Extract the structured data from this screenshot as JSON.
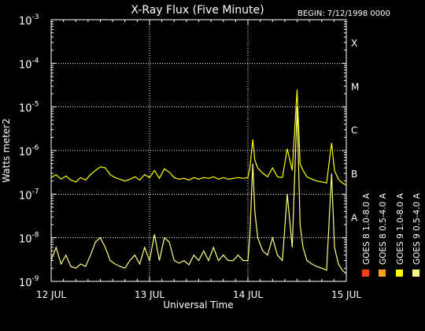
{
  "chart_data": {
    "type": "line",
    "title": "X-Ray Flux (Five Minute)",
    "begin_label": "BEGIN: 7/12/1998 0000",
    "xlabel": "Universal Time",
    "ylabel": "Watts meter2",
    "y_scale": "log",
    "ylim": [
      1e-09,
      0.001
    ],
    "y_ticks": [
      {
        "mant": "10",
        "exp": "-9",
        "value": 1e-09
      },
      {
        "mant": "10",
        "exp": "-8",
        "value": 1e-08
      },
      {
        "mant": "10",
        "exp": "-7",
        "value": 1e-07
      },
      {
        "mant": "10",
        "exp": "-6",
        "value": 1e-06
      },
      {
        "mant": "10",
        "exp": "-5",
        "value": 1e-05
      },
      {
        "mant": "10",
        "exp": "-4",
        "value": 0.0001
      },
      {
        "mant": "10",
        "exp": "-3",
        "value": 0.001
      }
    ],
    "x_ticks": [
      "12 JUL",
      "13 JUL",
      "14 JUL",
      "15 JUL"
    ],
    "grid": true,
    "flare_classes": [
      {
        "label": "A",
        "value": 3e-08
      },
      {
        "label": "B",
        "value": 3e-07
      },
      {
        "label": "C",
        "value": 3e-06
      },
      {
        "label": "M",
        "value": 3e-05
      },
      {
        "label": "X",
        "value": 0.0003
      }
    ],
    "legend": [
      {
        "name": "GOES 8  1.0-8.0 A",
        "color": "#ff4010"
      },
      {
        "name": "GOES 8  0.5-4.0 A",
        "color": "#ffa020"
      },
      {
        "name": "GOES 9  1.0-8.0 A",
        "color": "#ffff00"
      },
      {
        "name": "GOES 9  0.5-4.0 A",
        "color": "#ffff80"
      }
    ],
    "series": [
      {
        "name": "GOES 9  1.0-8.0 A",
        "color": "#ffff00",
        "x": [
          0,
          0.05,
          0.1,
          0.15,
          0.2,
          0.25,
          0.3,
          0.35,
          0.4,
          0.45,
          0.5,
          0.55,
          0.6,
          0.65,
          0.7,
          0.75,
          0.8,
          0.85,
          0.9,
          0.95,
          1.0,
          1.05,
          1.1,
          1.15,
          1.2,
          1.25,
          1.3,
          1.35,
          1.4,
          1.45,
          1.5,
          1.55,
          1.6,
          1.65,
          1.7,
          1.75,
          1.8,
          1.85,
          1.9,
          1.95,
          2.0,
          2.02,
          2.05,
          2.07,
          2.1,
          2.15,
          2.2,
          2.25,
          2.3,
          2.35,
          2.4,
          2.45,
          2.5,
          2.53,
          2.56,
          2.6,
          2.65,
          2.7,
          2.75,
          2.8,
          2.85,
          2.88,
          2.92,
          2.96,
          3.0
        ],
        "values": [
          2.4e-07,
          2.8e-07,
          2.2e-07,
          2.6e-07,
          2.1e-07,
          1.9e-07,
          2.4e-07,
          2.1e-07,
          2.8e-07,
          3.5e-07,
          4.2e-07,
          4e-07,
          2.8e-07,
          2.4e-07,
          2.2e-07,
          2e-07,
          2.2e-07,
          2.5e-07,
          2.1e-07,
          2.8e-07,
          2.4e-07,
          3.5e-07,
          2.3e-07,
          3.8e-07,
          3.2e-07,
          2.4e-07,
          2.2e-07,
          2.3e-07,
          2.1e-07,
          2.4e-07,
          2.2e-07,
          2.4e-07,
          2.3e-07,
          2.5e-07,
          2.2e-07,
          2.4e-07,
          2.2e-07,
          2.3e-07,
          2.4e-07,
          2.3e-07,
          2.4e-07,
          4e-07,
          1.8e-06,
          6e-07,
          4e-07,
          3e-07,
          2.5e-07,
          4e-07,
          2.5e-07,
          2.4e-07,
          1.1e-06,
          3.5e-07,
          2.5e-05,
          5e-07,
          3.5e-07,
          2.5e-07,
          2.2e-07,
          2e-07,
          1.9e-07,
          1.8e-07,
          1.5e-06,
          3.5e-07,
          2.2e-07,
          1.8e-07,
          1.6e-07
        ]
      },
      {
        "name": "GOES 9  0.5-4.0 A",
        "color": "#ffff80",
        "x": [
          0,
          0.05,
          0.1,
          0.15,
          0.2,
          0.25,
          0.3,
          0.35,
          0.4,
          0.45,
          0.5,
          0.55,
          0.6,
          0.65,
          0.7,
          0.75,
          0.8,
          0.85,
          0.9,
          0.95,
          1.0,
          1.05,
          1.1,
          1.15,
          1.2,
          1.25,
          1.3,
          1.35,
          1.4,
          1.45,
          1.5,
          1.55,
          1.6,
          1.65,
          1.7,
          1.75,
          1.8,
          1.85,
          1.9,
          1.95,
          2.0,
          2.02,
          2.05,
          2.07,
          2.1,
          2.15,
          2.2,
          2.25,
          2.3,
          2.35,
          2.4,
          2.45,
          2.5,
          2.53,
          2.56,
          2.6,
          2.65,
          2.7,
          2.75,
          2.8,
          2.85,
          2.88,
          2.92,
          2.96,
          3.0
        ],
        "values": [
          3e-09,
          6e-09,
          2.5e-09,
          4e-09,
          2.2e-09,
          2e-09,
          2.5e-09,
          2.2e-09,
          4e-09,
          8e-09,
          1e-08,
          6e-09,
          3e-09,
          2.5e-09,
          2.2e-09,
          2e-09,
          3e-09,
          4e-09,
          2.5e-09,
          6e-09,
          3e-09,
          1.2e-08,
          3e-09,
          1e-08,
          8e-09,
          3e-09,
          2.6e-09,
          3e-09,
          2.4e-09,
          4e-09,
          3e-09,
          5e-09,
          3e-09,
          6e-09,
          3e-09,
          4e-09,
          3e-09,
          3e-09,
          4e-09,
          3e-09,
          3e-09,
          1.2e-08,
          5e-07,
          4e-08,
          1e-08,
          5e-09,
          4e-09,
          1e-08,
          4e-09,
          3e-09,
          1e-07,
          6e-09,
          1e-05,
          2e-08,
          6e-09,
          3e-09,
          2.5e-09,
          2.2e-09,
          2e-09,
          1.8e-09,
          3e-07,
          6e-09,
          2.5e-09,
          1.8e-09,
          1.5e-09
        ]
      }
    ]
  }
}
